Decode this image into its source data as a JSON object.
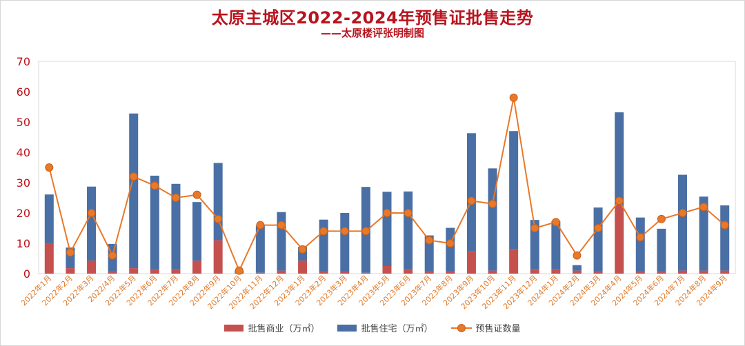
{
  "title": "太原主城区2022-2024年预售证批售走势",
  "subtitle": "——太原楼评张明制图",
  "colors": {
    "commercial": "#c5514f",
    "residential": "#4a6fa5",
    "permits": "#e8782a",
    "title": "#b8141e",
    "ytick": "#c0101a",
    "xtick": "#e07b2c"
  },
  "chart_data": {
    "type": "bar",
    "title": "太原主城区2022-2024年预售证批售走势",
    "subtitle": "——太原楼评张明制图",
    "ylim": [
      0,
      70
    ],
    "yticks": [
      0,
      10,
      20,
      30,
      40,
      50,
      60,
      70
    ],
    "grid": false,
    "legend_position": "bottom",
    "categories": [
      "2022年1月",
      "2022年2月",
      "2022年3月",
      "2022/4月",
      "2022年5月",
      "2022年6月",
      "2022年7月",
      "2022年8月",
      "2022年9月",
      "2022年10月",
      "2022年11月",
      "2022年12月",
      "2023年1月",
      "2023年2月",
      "2023年3月",
      "2023年4月",
      "2023年5月",
      "2023年6月",
      "2023年7月",
      "2023年8月",
      "2023年9月",
      "2023年10月",
      "2023年11月",
      "2023年12月",
      "2024年1月",
      "2024年2月",
      "2024年3月",
      "2024年4月",
      "2024年5月",
      "2024年6月",
      "2024年7月",
      "2024年8月",
      "2024年9月"
    ],
    "series": [
      {
        "name": "批售商业（万㎡）",
        "type": "stacked_bar",
        "values": [
          9.8,
          1.8,
          4.3,
          0.5,
          1.8,
          1.2,
          1.2,
          4.3,
          11.0,
          0.3,
          0.3,
          1.0,
          4.3,
          0.8,
          0.5,
          0.3,
          2.5,
          1.5,
          0.8,
          0.8,
          7.3,
          1.0,
          8.0,
          1.5,
          1.5,
          1.0,
          0.5,
          22.5,
          0.5,
          0.5,
          1.0,
          1.0,
          1.0
        ]
      },
      {
        "name": "批售住宅（万㎡）",
        "type": "stacked_bar",
        "values": [
          16.3,
          6.8,
          24.4,
          9.3,
          51.0,
          31.1,
          28.4,
          19.3,
          25.5,
          0.7,
          15.5,
          19.3,
          4.5,
          17.0,
          19.5,
          28.3,
          24.5,
          25.6,
          11.8,
          14.3,
          39.0,
          33.7,
          39.0,
          16.2,
          15.8,
          1.8,
          21.3,
          30.7,
          18.0,
          14.3,
          31.6,
          24.4,
          21.5
        ]
      },
      {
        "name": "预售证数量",
        "type": "line",
        "values": [
          35,
          7,
          20,
          6,
          32,
          29,
          25,
          26,
          18,
          1,
          16,
          16,
          8,
          14,
          14,
          14,
          20,
          20,
          11,
          10,
          24,
          23,
          58,
          15,
          17,
          6,
          15,
          24,
          12,
          18,
          20,
          22,
          16
        ]
      }
    ]
  }
}
